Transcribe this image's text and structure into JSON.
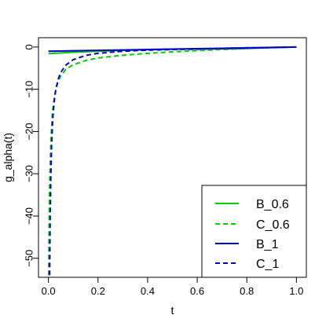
{
  "chart_data": {
    "type": "line",
    "title": "",
    "xlabel": "t",
    "ylabel": "g_alpha(t)",
    "xlim": [
      -0.04,
      1.04
    ],
    "ylim": [
      -54.5,
      2.2
    ],
    "x_ticks": [
      0.0,
      0.2,
      0.4,
      0.6,
      0.8,
      1.0
    ],
    "x_tick_labels": [
      "0.0",
      "0.2",
      "0.4",
      "0.6",
      "0.8",
      "1.0"
    ],
    "y_ticks": [
      0,
      -10,
      -20,
      -30,
      -40,
      -50
    ],
    "y_tick_labels": [
      "0",
      "−10",
      "−20",
      "−30",
      "−40",
      "−50"
    ],
    "grid": false,
    "legend_position": "bottom-right",
    "series": [
      {
        "name": "B_0.6",
        "color": "#00cc00",
        "style": "solid",
        "x": [
          0,
          0.02,
          0.05,
          0.1,
          0.15,
          0.2,
          0.3,
          0.4,
          0.5,
          0.6,
          0.7,
          0.8,
          0.9,
          1.0
        ],
        "y": [
          -1.6,
          -1.5,
          -1.4,
          -1.25,
          -1.12,
          -1.0,
          -0.82,
          -0.65,
          -0.52,
          -0.4,
          -0.3,
          -0.2,
          -0.1,
          0
        ]
      },
      {
        "name": "C_0.6",
        "color": "#00cc00",
        "style": "dashed",
        "x": [
          0.001,
          0.003,
          0.006,
          0.01,
          0.015,
          0.02,
          0.03,
          0.04,
          0.05,
          0.07,
          0.1,
          0.15,
          0.2,
          0.3,
          0.4,
          0.5,
          0.6,
          0.7,
          0.8,
          0.9,
          1.0
        ],
        "y": [
          -54,
          -40,
          -30,
          -22,
          -16.5,
          -13.5,
          -10,
          -8,
          -6.8,
          -5.3,
          -4.2,
          -3.2,
          -2.6,
          -1.95,
          -1.5,
          -1.15,
          -0.85,
          -0.6,
          -0.37,
          -0.18,
          0
        ]
      },
      {
        "name": "B_1",
        "color": "#0000cc",
        "style": "solid",
        "x": [
          0,
          0.1,
          0.2,
          0.3,
          0.4,
          0.5,
          0.6,
          0.7,
          0.8,
          0.9,
          1.0
        ],
        "y": [
          -1.0,
          -0.9,
          -0.8,
          -0.7,
          -0.6,
          -0.5,
          -0.4,
          -0.3,
          -0.2,
          -0.1,
          0
        ]
      },
      {
        "name": "C_1",
        "color": "#0000cc",
        "style": "dashed",
        "x": [
          0.005,
          0.007,
          0.01,
          0.013,
          0.017,
          0.02,
          0.025,
          0.03,
          0.04,
          0.05,
          0.07,
          0.1,
          0.15,
          0.2,
          0.3,
          0.4,
          0.5,
          0.6,
          0.7,
          0.8,
          0.9,
          1.0
        ],
        "y": [
          -54,
          -40,
          -30,
          -23,
          -17.5,
          -15,
          -12,
          -10,
          -7.5,
          -6,
          -4.3,
          -3.0,
          -2.0,
          -1.5,
          -1.0,
          -0.75,
          -0.6,
          -0.5,
          -0.4,
          -0.3,
          -0.15,
          0
        ]
      }
    ]
  }
}
